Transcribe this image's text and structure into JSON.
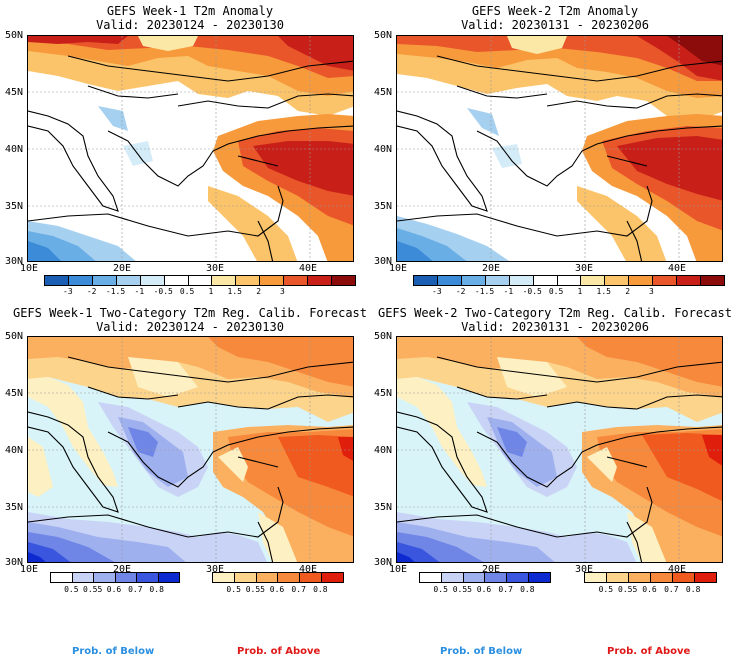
{
  "panels": [
    {
      "title": "GEFS Week-1 T2m Anomaly",
      "valid": "Valid: 20230124 - 20230130"
    },
    {
      "title": "GEFS Week-2 T2m Anomaly",
      "valid": "Valid: 20230131 - 20230206"
    },
    {
      "title": "GEFS Week-1 Two-Category T2m Reg. Calib. Forecast",
      "valid": "Valid: 20230124 - 20230130"
    },
    {
      "title": "GEFS Week-2 Two-Category T2m Reg. Calib. Forecast",
      "valid": "Valid: 20230131 - 20230206"
    }
  ],
  "lat_labels": [
    "50N",
    "45N",
    "40N",
    "35N",
    "30N"
  ],
  "lon_labels": [
    "10E",
    "20E",
    "30E",
    "40E"
  ],
  "anomaly_colorbar": {
    "colors": [
      "#1a5fb4",
      "#3b8bd8",
      "#6aaee6",
      "#a6d0f0",
      "#d4ecf8",
      "#ffffff",
      "#ffffff",
      "#fbe8a6",
      "#fbc46a",
      "#f79a3c",
      "#e9562a",
      "#c82018",
      "#8c0c0c"
    ],
    "ticks": [
      "-3",
      "-2",
      "-1.5",
      "-1",
      "-0.5",
      "0.5",
      "1",
      "1.5",
      "2",
      "3"
    ]
  },
  "below_colorbar": {
    "colors": [
      "#ffffff",
      "#c9d3f5",
      "#9fb0ef",
      "#6f86e6",
      "#3a56de",
      "#0d2ad1"
    ],
    "ticks": [
      "0.5",
      "0.55",
      "0.6",
      "0.7",
      "0.8"
    ]
  },
  "above_colorbar": {
    "colors": [
      "#fdf0c2",
      "#fcd48c",
      "#fbb060",
      "#f7893c",
      "#f05a1e",
      "#e01e0c"
    ],
    "ticks": [
      "0.5",
      "0.55",
      "0.6",
      "0.7",
      "0.8"
    ]
  },
  "legend": {
    "below": "Prob. of Below",
    "above": "Prob. of Above",
    "below_color": "#2a8fe0",
    "above_color": "#e01818"
  },
  "colors": {
    "sea_neutral": "#d8f4f8",
    "warm_strong": "#c82018",
    "warm": "#f28a38",
    "cool": "#3b6fd8"
  }
}
